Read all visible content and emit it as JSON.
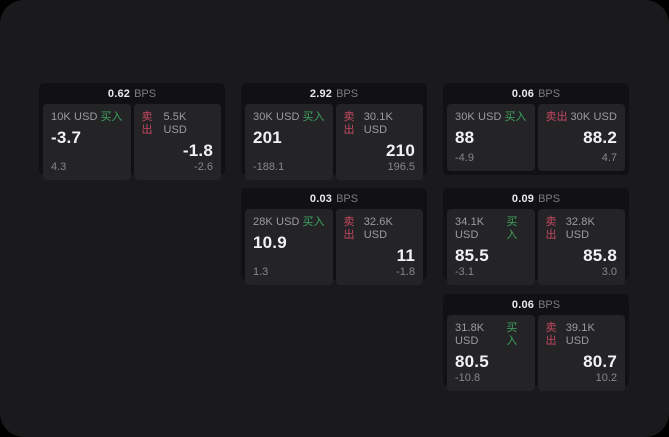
{
  "labels": {
    "bps_unit": "BPS",
    "buy": "买入",
    "sell": "卖出"
  },
  "colors": {
    "window_background": "#1a1a1c",
    "card_background": "#111113",
    "panel_background": "#242427",
    "buy_green": "#3fa35f",
    "sell_red": "#c4485f",
    "primary_text": "#f2f2f4",
    "secondary_text": "#9c9ca0"
  },
  "cards": [
    {
      "bps": "0.62",
      "buy": {
        "amount": "10K USD",
        "price": "-3.7",
        "delta": "4.3"
      },
      "sell": {
        "amount": "5.5K USD",
        "price": "-1.8",
        "delta": "-2.6"
      }
    },
    {
      "bps": "2.92",
      "buy": {
        "amount": "30K USD",
        "price": "201",
        "delta": "-188.1"
      },
      "sell": {
        "amount": "30.1K USD",
        "price": "210",
        "delta": "196.5"
      }
    },
    {
      "bps": "0.06",
      "buy": {
        "amount": "30K USD",
        "price": "88",
        "delta": "-4.9"
      },
      "sell": {
        "amount": "30K USD",
        "price": "88.2",
        "delta": "4.7"
      }
    },
    {
      "bps": "0.03",
      "buy": {
        "amount": "28K USD",
        "price": "10.9",
        "delta": "1.3"
      },
      "sell": {
        "amount": "32.6K USD",
        "price": "11",
        "delta": "-1.8"
      }
    },
    {
      "bps": "0.09",
      "buy": {
        "amount": "34.1K USD",
        "price": "85.5",
        "delta": "-3.1"
      },
      "sell": {
        "amount": "32.8K USD",
        "price": "85.8",
        "delta": "3.0"
      }
    },
    {
      "bps": "0.06",
      "buy": {
        "amount": "31.8K USD",
        "price": "80.5",
        "delta": "-10.8"
      },
      "sell": {
        "amount": "39.1K USD",
        "price": "80.7",
        "delta": "10.2"
      }
    }
  ]
}
